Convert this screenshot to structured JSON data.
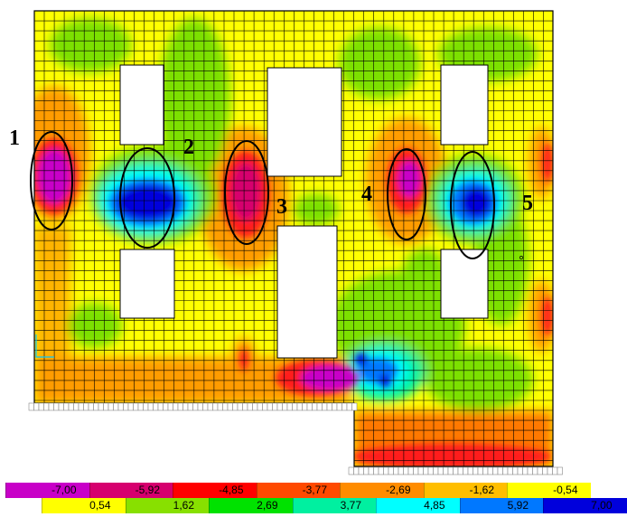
{
  "legend": {
    "negative_row": [
      {
        "label": "-7,00",
        "color": "#c800c8"
      },
      {
        "label": "-5,92",
        "color": "#d6006e"
      },
      {
        "label": "-4,85",
        "color": "#ff0000"
      },
      {
        "label": "-3,77",
        "color": "#ff4a00"
      },
      {
        "label": "-2,69",
        "color": "#ff8c00"
      },
      {
        "label": "-1,62",
        "color": "#ffbe00"
      },
      {
        "label": "-0,54",
        "color": "#ffff00"
      }
    ],
    "positive_row": [
      {
        "label": "0,54",
        "color": "#ffff00"
      },
      {
        "label": "1,62",
        "color": "#88e000"
      },
      {
        "label": "2,69",
        "color": "#00e200"
      },
      {
        "label": "3,77",
        "color": "#00f0a0"
      },
      {
        "label": "4,85",
        "color": "#00ffff"
      },
      {
        "label": "5,92",
        "color": "#0078ff"
      },
      {
        "label": "7,00",
        "color": "#0000dc"
      }
    ]
  },
  "callouts": [
    {
      "label": "1"
    },
    {
      "label": "2"
    },
    {
      "label": "3"
    },
    {
      "label": "4"
    },
    {
      "label": "5"
    }
  ],
  "colors": {
    "yellow": "#ffff00",
    "orange": "#ff9c00",
    "green": "#7ce000",
    "red": "#ff1e1e",
    "magenta": "#c800c8",
    "blue": "#0000dc",
    "mid_blue": "#0078ff",
    "cyan": "#00ffff",
    "mesh": "#000000",
    "opening": "#ffffff"
  }
}
